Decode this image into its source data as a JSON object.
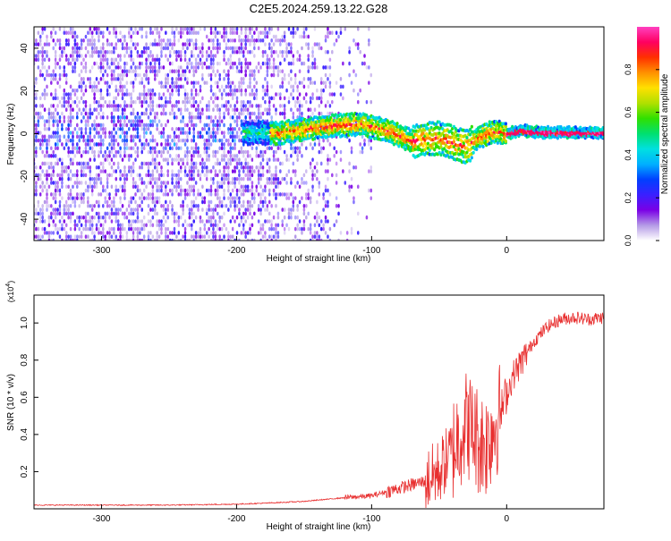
{
  "figure_title": "C2E5.2024.259.13.22.G28",
  "chart_data": [
    {
      "type": "heatmap",
      "title": "C2E5.2024.259.13.22.G28",
      "xlabel": "Height of straight line (km)",
      "ylabel": "Frequency (Hz)",
      "xlim": [
        -350,
        72
      ],
      "ylim": [
        -50,
        50
      ],
      "xticks": [
        -300,
        -200,
        -100,
        0
      ],
      "yticks": [
        -40,
        -20,
        0,
        20,
        40
      ],
      "colorbar": {
        "label": "Normalized spectral amplitude",
        "range": [
          0.0,
          1.0
        ],
        "ticks": [
          0.0,
          0.2,
          0.4,
          0.6,
          0.8
        ],
        "colormap": [
          "#ffffff",
          "#b49ae6",
          "#7a00e6",
          "#3a20ff",
          "#0040ff",
          "#00b0ff",
          "#00e0e0",
          "#00e070",
          "#30e000",
          "#b0e000",
          "#ffe000",
          "#ff9000",
          "#ff3000",
          "#ff0060",
          "#ff40c0"
        ]
      },
      "band_track": {
        "x": [
          -190,
          -170,
          -150,
          -130,
          -110,
          -90,
          -70,
          -50,
          -40,
          -30,
          -20,
          -10,
          0,
          10,
          20,
          40,
          72
        ],
        "y": [
          0.5,
          0.2,
          2.0,
          3.5,
          4.5,
          2.0,
          -3.5,
          -2.0,
          -4.0,
          -6.5,
          -1.5,
          1.0,
          0.0,
          1.5,
          0.8,
          0.5,
          0.5
        ]
      },
      "grid": false
    },
    {
      "type": "line",
      "xlabel": "Height of straight line (km)",
      "ylabel": "SNR (10 * v/v)",
      "y_multiplier": "(x10^4)",
      "xlim": [
        -350,
        72
      ],
      "ylim": [
        0,
        1.15
      ],
      "xticks": [
        -300,
        -200,
        -100,
        0
      ],
      "yticks": [
        0.2,
        0.4,
        0.6,
        0.8,
        1.0
      ],
      "series": [
        {
          "color": "#e83030",
          "x": [
            -350,
            -300,
            -250,
            -200,
            -180,
            -150,
            -120,
            -100,
            -90,
            -80,
            -70,
            -60,
            -50,
            -45,
            -40,
            -35,
            -30,
            -25,
            -20,
            -15,
            -10,
            -5,
            0,
            5,
            10,
            20,
            30,
            40,
            50,
            60,
            72
          ],
          "y": [
            0.02,
            0.02,
            0.02,
            0.025,
            0.03,
            0.04,
            0.06,
            0.07,
            0.09,
            0.11,
            0.13,
            0.15,
            0.2,
            0.26,
            0.32,
            0.4,
            0.46,
            0.42,
            0.36,
            0.35,
            0.44,
            0.5,
            0.62,
            0.72,
            0.78,
            0.9,
            0.98,
            1.02,
            1.03,
            1.02,
            1.03
          ]
        }
      ],
      "grid": false
    }
  ]
}
